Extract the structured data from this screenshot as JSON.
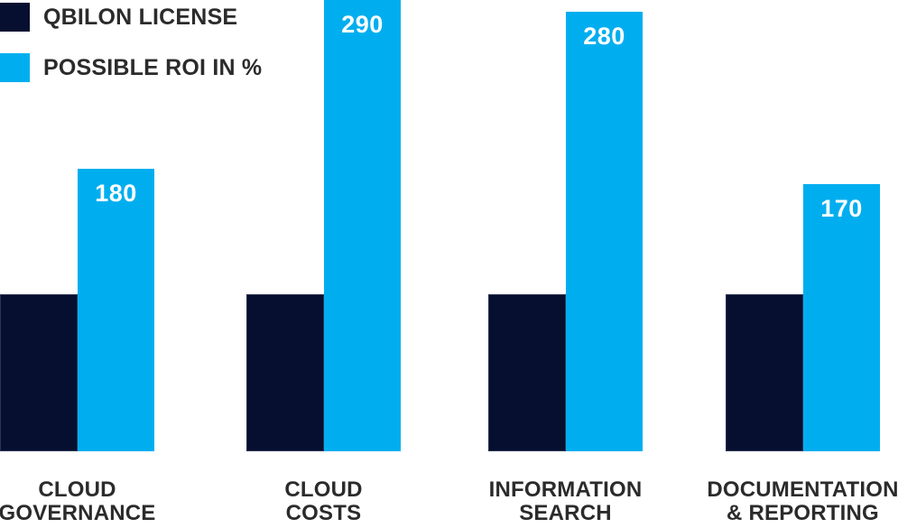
{
  "legend": {
    "items": [
      {
        "label": "QBILON LICENSE",
        "color": "#060f30"
      },
      {
        "label": "POSSIBLE ROI IN %",
        "color": "#00aeef"
      }
    ]
  },
  "chart_data": {
    "type": "bar",
    "title": "",
    "xlabel": "",
    "ylabel": "",
    "grid": false,
    "axes_visible": false,
    "legend_position": "top-left",
    "ylim": [
      0,
      287
    ],
    "categories": [
      {
        "label": "CLOUD GOVERNANCE",
        "lines": [
          "CLOUD",
          "GOVERNANCE"
        ]
      },
      {
        "label": "CLOUD COSTS",
        "lines": [
          "CLOUD",
          "COSTS"
        ]
      },
      {
        "label": "INFORMATION SEARCH",
        "lines": [
          "INFORMATION",
          "SEARCH"
        ]
      },
      {
        "label": "DOCUMENTATION & REPORTING",
        "lines": [
          "DOCUMENTATION",
          "& REPORTING"
        ]
      }
    ],
    "series": [
      {
        "name": "QBILON LICENSE",
        "color": "#060f30",
        "values": [
          100,
          100,
          100,
          100
        ],
        "show_data_labels": false
      },
      {
        "name": "POSSIBLE ROI IN %",
        "color": "#00aeef",
        "values": [
          180,
          290,
          280,
          170
        ],
        "show_data_labels": true,
        "data_labels": [
          "180",
          "290",
          "280",
          "170"
        ]
      }
    ]
  }
}
